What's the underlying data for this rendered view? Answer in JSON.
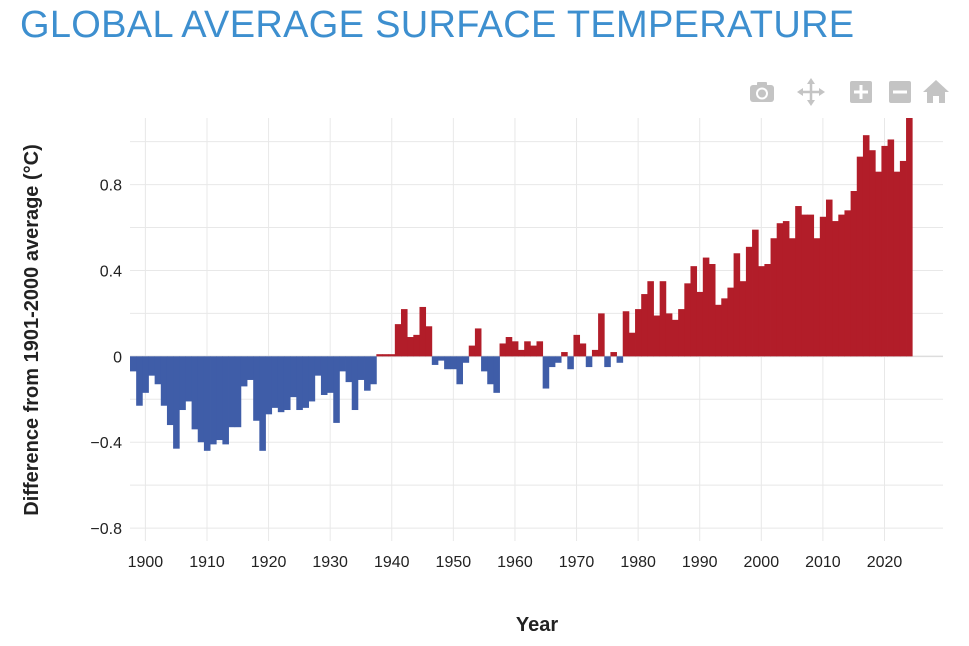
{
  "page": {
    "title": "GLOBAL AVERAGE SURFACE TEMPERATURE"
  },
  "toolbar": {
    "items": [
      {
        "name": "camera-icon",
        "label": "Download plot as a png"
      },
      {
        "name": "pan-icon",
        "label": "Pan"
      },
      {
        "name": "zoom-in-icon",
        "label": "Zoom in"
      },
      {
        "name": "zoom-out-icon",
        "label": "Zoom out"
      },
      {
        "name": "home-icon",
        "label": "Reset axes"
      }
    ],
    "icon_color": "#c4c4c4"
  },
  "chart_data": {
    "type": "bar",
    "title": "GLOBAL AVERAGE SURFACE TEMPERATURE",
    "xlabel": "Year",
    "ylabel": "Difference from 1901-2000 average (°C)",
    "xlim": [
      1897.5,
      2029.5
    ],
    "ylim": [
      -0.86,
      1.11
    ],
    "x_ticks": [
      1900,
      1910,
      1920,
      1930,
      1940,
      1950,
      1960,
      1970,
      1980,
      1990,
      2000,
      2010,
      2020
    ],
    "y_ticks": [
      -0.8,
      -0.4,
      0,
      0.4,
      0.8
    ],
    "y_tick_labels": [
      "−0.8",
      "−0.4",
      "0",
      "0.4",
      "0.8"
    ],
    "grid": true,
    "colors": {
      "positive": "#b21d29",
      "negative": "#3f5da8",
      "grid": "#e8e8e8",
      "zeroline": "#dddddd"
    },
    "start_year": 1898,
    "values": [
      -0.07,
      -0.23,
      -0.17,
      -0.09,
      -0.13,
      -0.23,
      -0.32,
      -0.43,
      -0.25,
      -0.21,
      -0.34,
      -0.4,
      -0.44,
      -0.41,
      -0.39,
      -0.41,
      -0.33,
      -0.33,
      -0.14,
      -0.11,
      -0.3,
      -0.44,
      -0.27,
      -0.24,
      -0.26,
      -0.25,
      -0.19,
      -0.25,
      -0.24,
      -0.21,
      -0.09,
      -0.18,
      -0.17,
      -0.31,
      -0.07,
      -0.12,
      -0.25,
      -0.11,
      -0.16,
      -0.13,
      0.01,
      0.01,
      0.01,
      0.15,
      0.22,
      0.09,
      0.1,
      0.23,
      0.14,
      -0.04,
      -0.02,
      -0.06,
      -0.06,
      -0.13,
      -0.03,
      0.05,
      0.13,
      -0.07,
      -0.13,
      -0.17,
      0.06,
      0.09,
      0.07,
      0.03,
      0.07,
      0.05,
      0.07,
      -0.15,
      -0.05,
      -0.03,
      0.02,
      -0.06,
      0.1,
      0.06,
      -0.05,
      0.03,
      0.2,
      -0.05,
      0.02,
      -0.03,
      0.21,
      0.11,
      0.22,
      0.29,
      0.35,
      0.19,
      0.35,
      0.2,
      0.17,
      0.22,
      0.34,
      0.42,
      0.3,
      0.46,
      0.43,
      0.24,
      0.27,
      0.32,
      0.48,
      0.35,
      0.51,
      0.59,
      0.42,
      0.43,
      0.55,
      0.62,
      0.63,
      0.55,
      0.7,
      0.66,
      0.66,
      0.55,
      0.65,
      0.73,
      0.63,
      0.66,
      0.68,
      0.77,
      0.93,
      1.03,
      0.96,
      0.86,
      0.98,
      1.01,
      0.86,
      0.91,
      1.11
    ]
  }
}
